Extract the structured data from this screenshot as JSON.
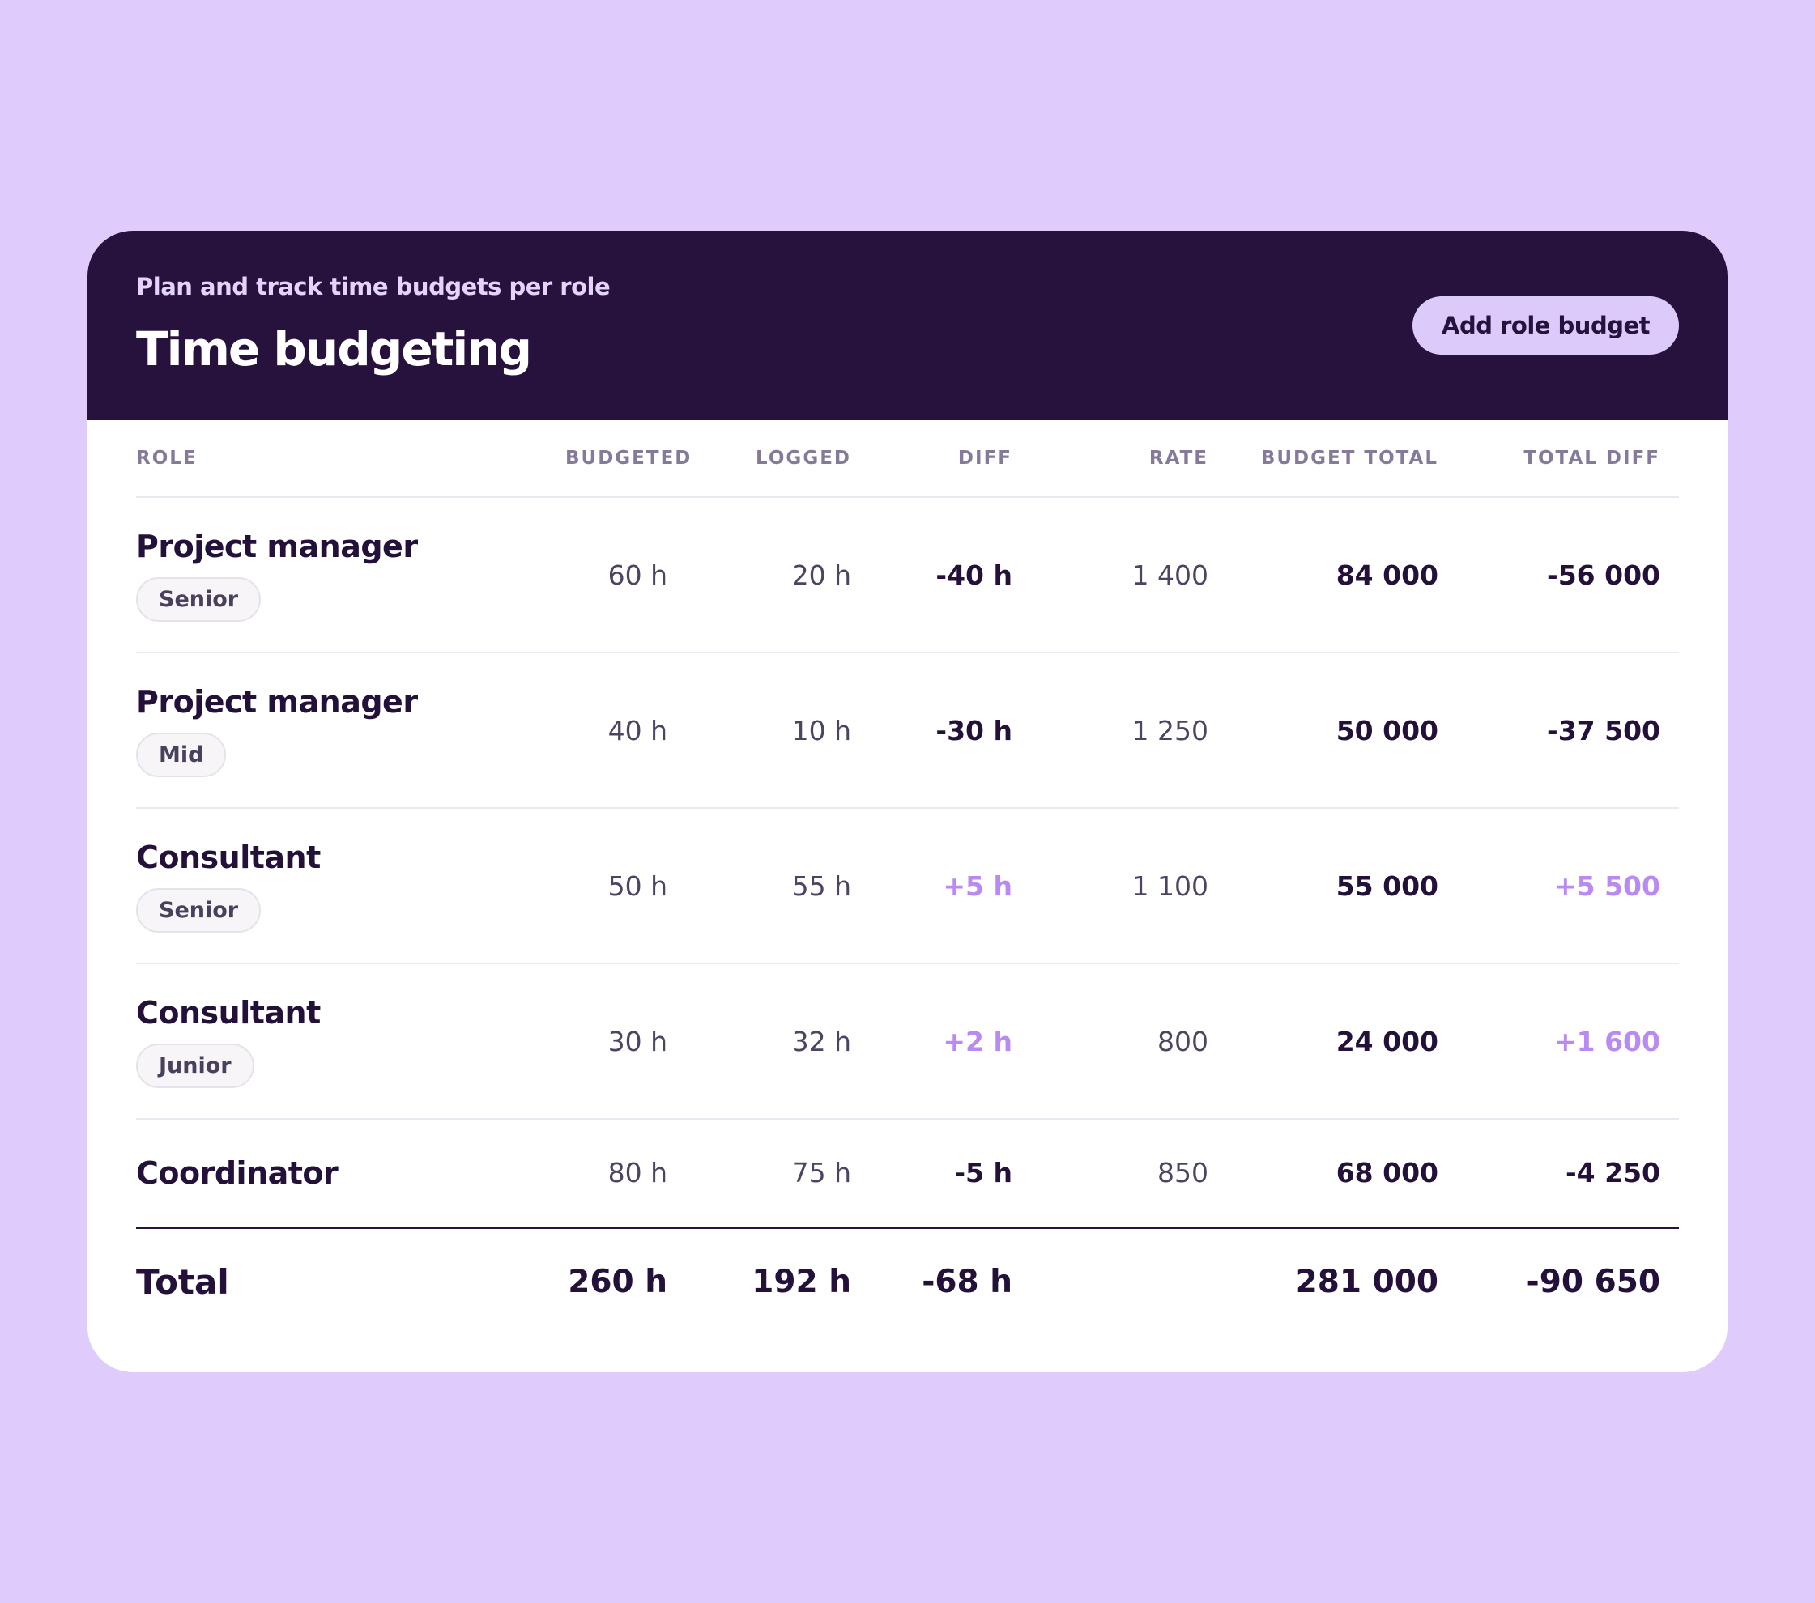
{
  "header": {
    "subtitle": "Plan and track time budgets per role",
    "title": "Time budgeting",
    "add_button": "Add role budget"
  },
  "table": {
    "columns": {
      "role": "ROLE",
      "budgeted": "BUDGETED",
      "logged": "LOGGED",
      "diff": "DIFF",
      "rate": "RATE",
      "budget_total": "BUDGET TOTAL",
      "total_diff": "TOTAL DIFF"
    },
    "rows": [
      {
        "role": "Project manager",
        "level": "Senior",
        "budgeted": "60 h",
        "logged": "20 h",
        "diff": "-40 h",
        "rate": "1 400",
        "budget_total": "84 000",
        "total_diff": "-56 000"
      },
      {
        "role": "Project manager",
        "level": "Mid",
        "budgeted": "40 h",
        "logged": "10 h",
        "diff": "-30 h",
        "rate": "1 250",
        "budget_total": "50 000",
        "total_diff": "-37 500"
      },
      {
        "role": "Consultant",
        "level": "Senior",
        "budgeted": "50 h",
        "logged": "55 h",
        "diff": "+5 h",
        "rate": "1 100",
        "budget_total": "55 000",
        "total_diff": "+5 500"
      },
      {
        "role": "Consultant",
        "level": "Junior",
        "budgeted": "30 h",
        "logged": "32 h",
        "diff": "+2 h",
        "rate": "800",
        "budget_total": "24 000",
        "total_diff": "+1 600"
      },
      {
        "role": "Coordinator",
        "budgeted": "80 h",
        "logged": "75 h",
        "diff": "-5 h",
        "rate": "850",
        "budget_total": "68 000",
        "total_diff": "-4 250"
      }
    ],
    "totals": {
      "label": "Total",
      "budgeted": "260 h",
      "logged": "192 h",
      "diff": "-68 h",
      "budget_total": "281 000",
      "total_diff": "-90 650"
    }
  },
  "colors": {
    "background": "#dfccfd",
    "header_bg": "#27113d",
    "accent": "#dccafb",
    "positive": "#b98af1",
    "text": "#23113a"
  }
}
